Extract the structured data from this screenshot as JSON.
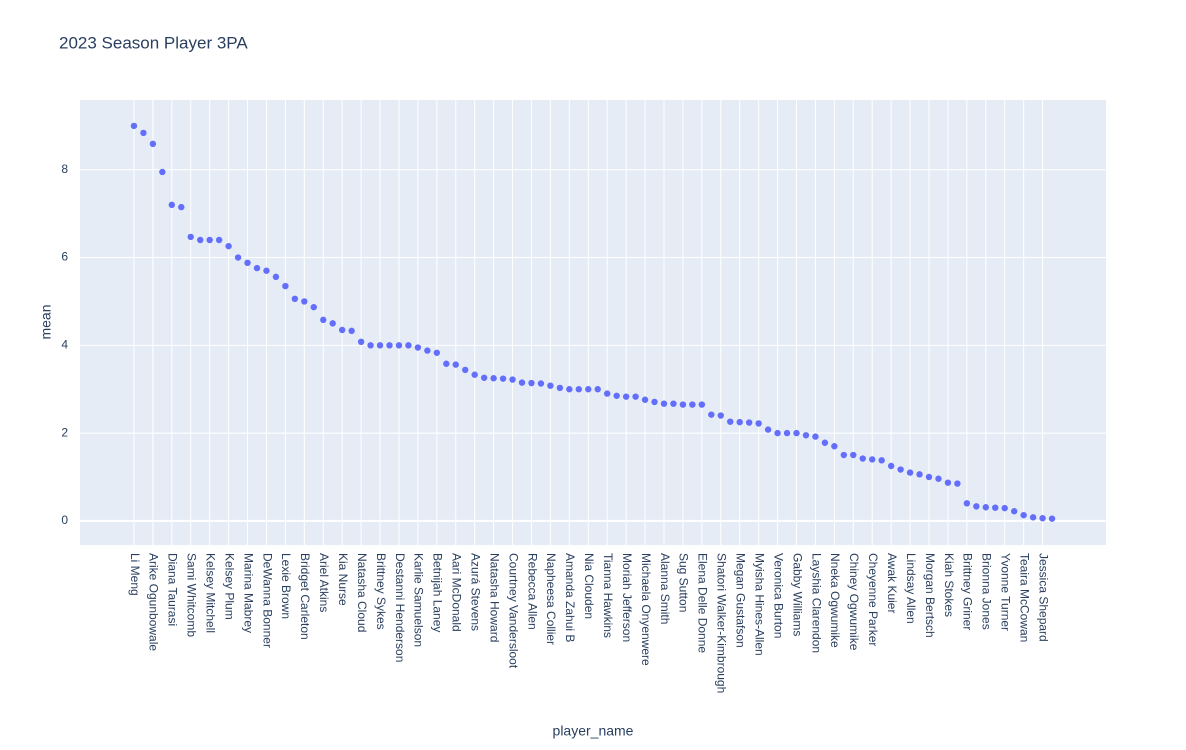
{
  "chart_data": {
    "type": "scatter",
    "title": "2023 Season Player 3PA",
    "x_label": "player_name",
    "y_label": "mean",
    "categories": [
      "Li Meng",
      null,
      "Arike Ogunbowale",
      null,
      "Diana Taurasi",
      null,
      "Sami Whitcomb",
      null,
      "Kelsey Mitchell",
      null,
      "Kelsey Plum",
      null,
      "Marina Mabrey",
      null,
      "DeWanna Bonner",
      null,
      "Lexie Brown",
      null,
      "Bridget Carleton",
      null,
      "Ariel Atkins",
      null,
      "Kia Nurse",
      null,
      "Natasha Cloud",
      null,
      "Brittney Sykes",
      null,
      "Destanni Henderson",
      null,
      "Karlie Samuelson",
      null,
      "Betnijah Laney",
      null,
      "Aari McDonald",
      null,
      "Azurá Stevens",
      null,
      "Natasha Howard",
      null,
      "Courtney Vandersloot",
      null,
      "Rebecca Allen",
      null,
      "Napheesa Collier",
      null,
      "Amanda Zahui B",
      null,
      "Nia Clouden",
      null,
      "Tianna Hawkins",
      null,
      "Moriah Jefferson",
      null,
      "Michaela Onyenwere",
      null,
      "Alanna Smith",
      null,
      "Sug Sutton",
      null,
      "Elena Delle Donne",
      null,
      "Shatori Walker-Kimbrough",
      null,
      "Megan Gustafson",
      null,
      "Myisha Hines-Allen",
      null,
      "Veronica Burton",
      null,
      "Gabby Williams",
      null,
      "Layshia Clarendon",
      null,
      "Nneka Ogwumike",
      null,
      "Chiney Ogwumike",
      null,
      "Cheyenne Parker",
      null,
      "Awak Kuier",
      null,
      "Lindsay Allen",
      null,
      "Morgan Bertsch",
      null,
      "Kiah Stokes",
      null,
      "Brittney Griner",
      null,
      "Brionna Jones",
      null,
      "Yvonne Turner",
      null,
      "Teaira McCowan",
      null,
      "Jessica Shepard",
      null
    ],
    "values": [
      9.0,
      8.84,
      8.59,
      7.95,
      7.2,
      7.15,
      6.47,
      6.4,
      6.4,
      6.4,
      6.26,
      6.0,
      5.88,
      5.76,
      5.7,
      5.56,
      5.35,
      5.06,
      5.0,
      4.87,
      4.58,
      4.5,
      4.35,
      4.33,
      4.08,
      4.0,
      4.0,
      4.0,
      4.0,
      4.0,
      3.95,
      3.88,
      3.83,
      3.58,
      3.56,
      3.44,
      3.33,
      3.26,
      3.25,
      3.24,
      3.22,
      3.15,
      3.14,
      3.13,
      3.08,
      3.03,
      3.0,
      3.0,
      3.0,
      3.0,
      2.9,
      2.85,
      2.83,
      2.83,
      2.76,
      2.71,
      2.67,
      2.67,
      2.65,
      2.65,
      2.65,
      2.42,
      2.4,
      2.26,
      2.25,
      2.24,
      2.22,
      2.08,
      2.0,
      2.0,
      2.0,
      1.95,
      1.92,
      1.78,
      1.7,
      1.5,
      1.5,
      1.42,
      1.4,
      1.38,
      1.25,
      1.17,
      1.1,
      1.06,
      1.0,
      0.96,
      0.87,
      0.85,
      0.4,
      0.33,
      0.31,
      0.3,
      0.29,
      0.22,
      0.13,
      0.08,
      0.06,
      0.05
    ],
    "color": "#636efa",
    "ylim": [
      -0.55,
      9.59
    ],
    "yticks": [
      0,
      2,
      4,
      6,
      8
    ],
    "grid": true
  }
}
